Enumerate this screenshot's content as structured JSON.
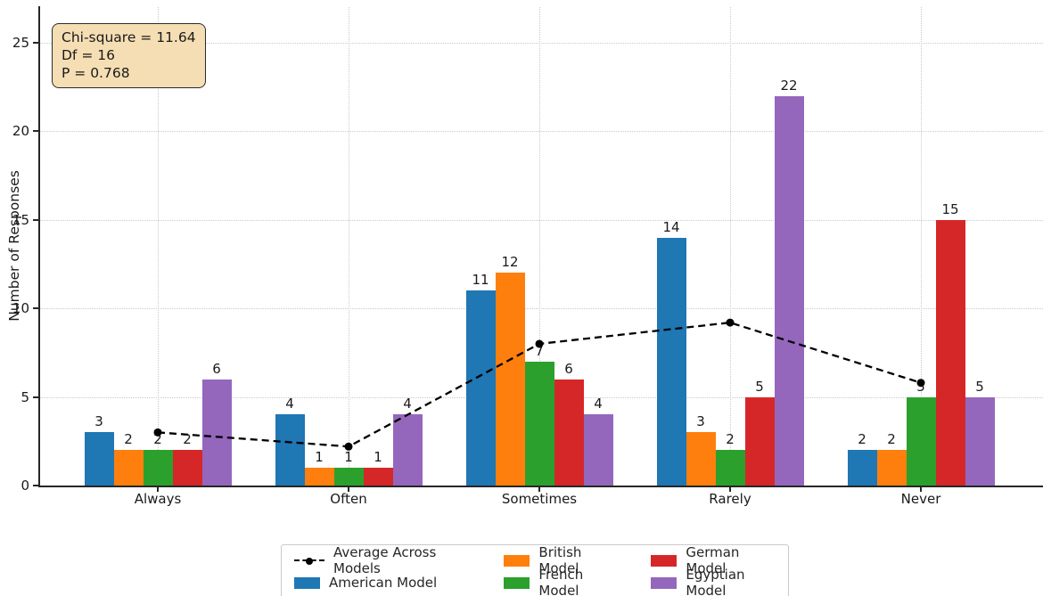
{
  "chart_data": {
    "type": "bar",
    "title": "",
    "ylabel": "Number of Responses",
    "xlabel": "",
    "categories": [
      "Always",
      "Often",
      "Sometimes",
      "Rarely",
      "Never"
    ],
    "series": [
      {
        "name": "American Model",
        "color": "#1f77b4",
        "values": [
          3,
          4,
          11,
          14,
          2
        ]
      },
      {
        "name": "British Model",
        "color": "#ff7f0e",
        "values": [
          2,
          1,
          12,
          3,
          2
        ]
      },
      {
        "name": "French Model",
        "color": "#2ca02c",
        "values": [
          2,
          1,
          7,
          2,
          5
        ]
      },
      {
        "name": "German Model",
        "color": "#d62728",
        "values": [
          2,
          1,
          6,
          5,
          15
        ]
      },
      {
        "name": "Egyptian Model",
        "color": "#9467bd",
        "values": [
          6,
          4,
          4,
          22,
          5
        ]
      }
    ],
    "line_series": {
      "name": "Average Across Models",
      "color": "#000000",
      "style": "dashed-with-dot-markers",
      "values": [
        3.0,
        2.2,
        8.0,
        9.2,
        5.8
      ]
    },
    "bar_value_labels": true,
    "yticks": [
      0,
      5,
      10,
      15,
      20,
      25
    ],
    "ylim": [
      0,
      27
    ],
    "grid": "dotted both axes",
    "legend_position": "bottom-center"
  },
  "annotation": {
    "lines": [
      "Chi-square = 11.64",
      "Df = 16",
      "P = 0.768"
    ],
    "bg_color": "#f5deb3",
    "border_color": "#2b2b2b"
  }
}
